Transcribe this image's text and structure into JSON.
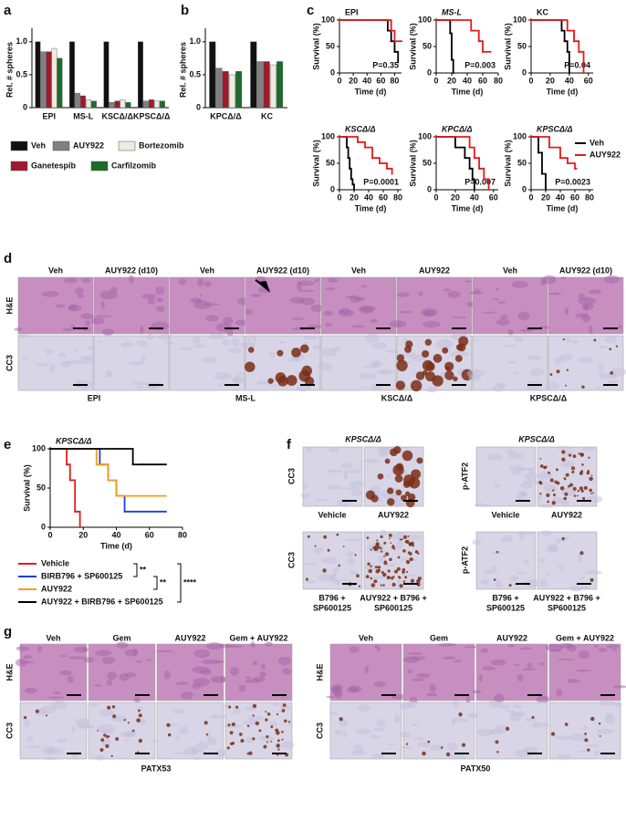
{
  "panel_letters": [
    "a",
    "b",
    "c",
    "d",
    "e",
    "f",
    "g"
  ],
  "chart_data": [
    {
      "type": "bar",
      "ylabel": "Rel. # spheres",
      "categories": [
        "EPI",
        "MS-L",
        "KSCΔ/Δ",
        "KPSCΔ/Δ"
      ],
      "ylim": [
        0,
        1.15
      ],
      "yticks": [
        0,
        0.5,
        {
          "value": 1,
          "label": "1.0"
        }
      ],
      "legend": "below",
      "series": [
        {
          "name": "Veh",
          "color": "#111111",
          "values": [
            1.0,
            1.0,
            1.0,
            1.0
          ]
        },
        {
          "name": "AUY922",
          "color": "#808080",
          "values": [
            0.85,
            0.22,
            0.08,
            0.1
          ]
        },
        {
          "name": "Ganetespib",
          "color": "#a0192c",
          "values": [
            0.85,
            0.18,
            0.1,
            0.12
          ]
        },
        {
          "name": "Bortezomib",
          "color": "#ecebdf",
          "values": [
            0.9,
            0.12,
            0.12,
            0.1
          ]
        },
        {
          "name": "Carfilzomib",
          "color": "#1b6b2a",
          "values": [
            0.75,
            0.1,
            0.08,
            0.1
          ]
        }
      ]
    },
    {
      "type": "bar",
      "ylabel": "Rel. # spheres",
      "categories": [
        "KPCΔ/Δ",
        "KC"
      ],
      "ylim": [
        0,
        1.15
      ],
      "yticks": [
        0,
        0.5,
        {
          "value": 1,
          "label": "1.0"
        }
      ],
      "series": [
        {
          "color": "#111111",
          "values": [
            1.0,
            1.0
          ]
        },
        {
          "color": "#808080",
          "values": [
            0.6,
            0.7
          ]
        },
        {
          "color": "#a0192c",
          "values": [
            0.55,
            0.7
          ]
        },
        {
          "color": "#ecebdf",
          "values": [
            0.5,
            0.65
          ]
        },
        {
          "color": "#1b6b2a",
          "values": [
            0.55,
            0.7
          ]
        }
      ]
    },
    {
      "type": "km",
      "title": "EPI",
      "xlabel": "Time (d)",
      "ylabel": "Survival (%)",
      "annotation": "P=0.35",
      "xlim": [
        0,
        90
      ],
      "xticks": [
        0,
        20,
        40,
        60,
        80
      ],
      "ylim": [
        0,
        100
      ],
      "yticks": [
        0,
        50,
        100
      ],
      "series": [
        {
          "color": "#000000",
          "x": [
            0,
            70,
            75,
            80,
            85
          ],
          "values": [
            100,
            80,
            60,
            40,
            20
          ]
        },
        {
          "color": "#e41a1c",
          "x": [
            0,
            75,
            80,
            90
          ],
          "values": [
            100,
            80,
            60,
            60
          ]
        }
      ]
    },
    {
      "type": "km",
      "title": "MS-L",
      "xlabel": "Time (d)",
      "ylabel": "Survival (%)",
      "annotation": "P=0.003",
      "xlim": [
        0,
        80
      ],
      "xticks": [
        0,
        20,
        40,
        60,
        80
      ],
      "ylim": [
        0,
        100
      ],
      "yticks": [
        0,
        50,
        100
      ],
      "series": [
        {
          "color": "#000000",
          "x": [
            0,
            18,
            20,
            22
          ],
          "values": [
            100,
            75,
            25,
            0
          ]
        },
        {
          "color": "#e41a1c",
          "x": [
            0,
            45,
            55,
            60,
            70
          ],
          "values": [
            100,
            80,
            60,
            40,
            40
          ]
        }
      ]
    },
    {
      "type": "km",
      "title": "KC",
      "xlabel": "Time (d)",
      "ylabel": "Survival (%)",
      "annotation": "P=0.04",
      "xlim": [
        0,
        65
      ],
      "xticks": [
        0,
        20,
        40,
        60
      ],
      "ylim": [
        0,
        100
      ],
      "yticks": [
        0,
        50,
        100
      ],
      "series": [
        {
          "color": "#000000",
          "x": [
            0,
            32,
            35,
            38,
            40
          ],
          "values": [
            100,
            80,
            60,
            40,
            0
          ]
        },
        {
          "color": "#e41a1c",
          "x": [
            0,
            38,
            45,
            50,
            55
          ],
          "values": [
            100,
            80,
            60,
            40,
            0
          ]
        }
      ]
    },
    {
      "type": "km",
      "title": "KSCΔ/Δ",
      "xlabel": "Time (d)",
      "ylabel": "Survival (%)",
      "annotation": "P=0.0001",
      "xlim": [
        0,
        85
      ],
      "xticks": [
        0,
        20,
        40,
        60,
        80
      ],
      "ylim": [
        0,
        100
      ],
      "yticks": [
        0,
        50,
        100
      ],
      "series": [
        {
          "color": "#000000",
          "x": [
            0,
            10,
            12,
            14,
            16,
            18,
            20
          ],
          "values": [
            100,
            80,
            60,
            40,
            20,
            10,
            0
          ]
        },
        {
          "color": "#e41a1c",
          "x": [
            0,
            25,
            35,
            45,
            55,
            65,
            72
          ],
          "values": [
            100,
            90,
            80,
            60,
            50,
            40,
            30
          ]
        }
      ]
    },
    {
      "type": "km",
      "title": "KPCΔ/Δ",
      "xlabel": "Time (d)",
      "ylabel": "Survival (%)",
      "annotation": "P=0.007",
      "xlim": [
        0,
        65
      ],
      "xticks": [
        0,
        20,
        40,
        60
      ],
      "ylim": [
        0,
        100
      ],
      "yticks": [
        0,
        50,
        100
      ],
      "series": [
        {
          "color": "#000000",
          "x": [
            0,
            20,
            30,
            35,
            38,
            40
          ],
          "values": [
            100,
            80,
            60,
            40,
            20,
            0
          ]
        },
        {
          "color": "#e41a1c",
          "x": [
            0,
            35,
            40,
            45,
            50,
            55
          ],
          "values": [
            100,
            80,
            60,
            40,
            20,
            0
          ]
        }
      ]
    },
    {
      "type": "km",
      "title": "KPSCΔ/Δ",
      "xlabel": "Time (d)",
      "ylabel": "Survival (%)",
      "annotation": "P=0.0023",
      "xlim": [
        0,
        85
      ],
      "xticks": [
        0,
        20,
        40,
        60,
        80
      ],
      "ylim": [
        0,
        100
      ],
      "yticks": [
        0,
        50,
        100
      ],
      "legend": "right",
      "series": [
        {
          "name": "Veh",
          "color": "#000000",
          "x": [
            0,
            10,
            15,
            20
          ],
          "values": [
            100,
            70,
            30,
            0
          ]
        },
        {
          "name": "AUY922",
          "color": "#e41a1c",
          "x": [
            0,
            25,
            40,
            50,
            60,
            62
          ],
          "values": [
            100,
            80,
            60,
            50,
            40,
            40
          ]
        }
      ]
    },
    {
      "type": "km",
      "title": "KPSCΔ/Δ",
      "xlabel": "Time (d)",
      "ylabel": "Survival (%)",
      "xlim": [
        0,
        80
      ],
      "xticks": [
        0,
        20,
        40,
        60,
        80
      ],
      "ylim": [
        0,
        100
      ],
      "yticks": [
        0,
        50,
        100
      ],
      "legend": "below",
      "significance": [
        "**",
        "**",
        "****"
      ],
      "series": [
        {
          "name": "Vehicle",
          "color": "#e41a1c",
          "x": [
            0,
            10,
            12,
            15,
            18
          ],
          "values": [
            100,
            80,
            60,
            20,
            0
          ]
        },
        {
          "name": "BIRB796 + SP600125",
          "color": "#1f3fd0",
          "x": [
            0,
            30,
            35,
            40,
            45,
            70
          ],
          "values": [
            100,
            80,
            60,
            40,
            20,
            20
          ]
        },
        {
          "name": "AUY922",
          "color": "#f39c1f",
          "x": [
            0,
            28,
            35,
            40,
            45,
            70
          ],
          "values": [
            100,
            80,
            60,
            40,
            40,
            40
          ]
        },
        {
          "name": "AUY922 + BIRB796 + SP600125",
          "color": "#000000",
          "x": [
            0,
            50,
            55,
            70
          ],
          "values": [
            100,
            80,
            80,
            80
          ]
        }
      ]
    }
  ],
  "d": {
    "columns": [
      "Veh",
      "AUY922 (d10)",
      "Veh",
      "AUY922 (d10)",
      "Veh",
      "AUY922",
      "Veh",
      "AUY922 (d10)"
    ],
    "rows": [
      "H&E",
      "CC3"
    ],
    "groups": [
      "EPI",
      "MS-L",
      "KSCΔ/Δ",
      "KPSCΔ/Δ"
    ]
  },
  "f": {
    "blocks": [
      {
        "title": "KPSCΔ/Δ",
        "rows": [
          "CC3",
          "CC3"
        ],
        "captions": [
          [
            "Vehicle"
          ],
          [
            "AUY922"
          ],
          [
            "B796 +",
            "SP600125"
          ],
          [
            "AUY922 + B796 +",
            "SP600125"
          ]
        ]
      },
      {
        "title": "KPSCΔ/Δ",
        "rows": [
          "p-ATF2",
          "p-ATF2"
        ],
        "captions": [
          [
            "Vehicle"
          ],
          [
            "AUY922"
          ],
          [
            "B796 +",
            "SP600125"
          ],
          [
            "AUY922 + B796 +",
            "SP600125"
          ]
        ]
      }
    ]
  },
  "g": {
    "blocks": [
      {
        "columns": [
          "Veh",
          "Gem",
          "AUY922",
          "Gem + AUY922"
        ],
        "rows": [
          "H&E",
          "CC3"
        ],
        "group": "PATX53"
      },
      {
        "columns": [
          "Veh",
          "Gem",
          "AUY922",
          "Gem + AUY922"
        ],
        "rows": [
          "H&E",
          "CC3"
        ],
        "group": "PATX50"
      }
    ]
  }
}
